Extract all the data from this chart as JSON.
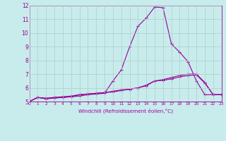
{
  "xlabel": "Windchill (Refroidissement éolien,°C)",
  "xlim": [
    0,
    23
  ],
  "ylim": [
    5,
    12
  ],
  "xticks": [
    0,
    1,
    2,
    3,
    4,
    5,
    6,
    7,
    8,
    9,
    10,
    11,
    12,
    13,
    14,
    15,
    16,
    17,
    18,
    19,
    20,
    21,
    22,
    23
  ],
  "yticks": [
    5,
    6,
    7,
    8,
    9,
    10,
    11,
    12
  ],
  "background_color": "#c8ecec",
  "line_color": "#990099",
  "grid_color": "#b0cccc",
  "line1_x": [
    0,
    1,
    2,
    3,
    4,
    5,
    6,
    7,
    8,
    9,
    10,
    11,
    12,
    13,
    14,
    15,
    16,
    17,
    18,
    19,
    20,
    21,
    22,
    23
  ],
  "line1_y": [
    5.0,
    5.3,
    5.2,
    5.25,
    5.3,
    5.35,
    5.4,
    5.5,
    5.55,
    5.6,
    6.5,
    7.3,
    9.0,
    10.5,
    11.1,
    11.9,
    11.85,
    9.2,
    8.6,
    7.9,
    6.5,
    5.5,
    5.5,
    5.5
  ],
  "line2_x": [
    0,
    1,
    2,
    3,
    4,
    5,
    6,
    7,
    8,
    9,
    10,
    11,
    12,
    13,
    14,
    15,
    16,
    17,
    18,
    19,
    20,
    21,
    22,
    23
  ],
  "line2_y": [
    5.0,
    5.3,
    5.25,
    5.3,
    5.35,
    5.4,
    5.5,
    5.55,
    5.6,
    5.65,
    5.75,
    5.85,
    5.9,
    6.0,
    6.2,
    6.5,
    6.6,
    6.75,
    6.9,
    7.0,
    7.0,
    6.4,
    5.5,
    5.5
  ],
  "line3_x": [
    0,
    1,
    2,
    3,
    4,
    5,
    6,
    7,
    8,
    9,
    10,
    11,
    12,
    13,
    14,
    15,
    16,
    17,
    18,
    19,
    20,
    21,
    22,
    23
  ],
  "line3_y": [
    5.0,
    5.3,
    5.2,
    5.3,
    5.3,
    5.35,
    5.5,
    5.55,
    5.6,
    5.65,
    5.7,
    5.8,
    5.9,
    6.0,
    6.15,
    6.5,
    6.55,
    6.65,
    6.8,
    6.9,
    6.95,
    6.35,
    5.5,
    5.5
  ]
}
